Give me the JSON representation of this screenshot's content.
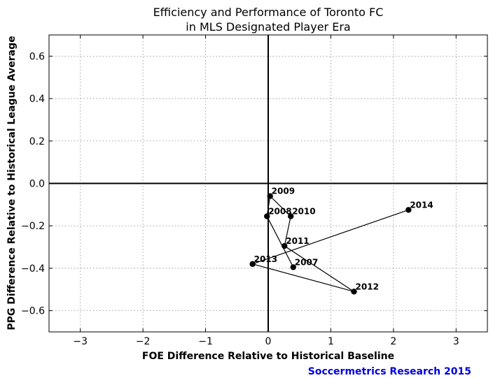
{
  "chart_data": {
    "type": "scatter",
    "title": [
      "Efficiency and Performance of Toronto FC",
      "in MLS Designated Player Era"
    ],
    "xlabel": "FOE Difference Relative to Historical Baseline",
    "ylabel": "PPG Difference Relative to Historical League Average",
    "xlim": [
      -3.5,
      3.5
    ],
    "ylim": [
      -0.7,
      0.7
    ],
    "xticks": [
      -3,
      -2,
      -1,
      0,
      1,
      2,
      3
    ],
    "xtick_labels": [
      "−3",
      "−2",
      "−1",
      "0",
      "1",
      "2",
      "3"
    ],
    "yticks": [
      -0.6,
      -0.4,
      -0.2,
      0.0,
      0.2,
      0.4,
      0.6
    ],
    "ytick_labels": [
      "−0.6",
      "−0.4",
      "−0.2",
      "0.0",
      "0.2",
      "0.4",
      "0.6"
    ],
    "grid": true,
    "reference_lines": {
      "x": 0,
      "y": 0
    },
    "series": [
      {
        "connected": true,
        "color": "#000000",
        "points": [
          {
            "label": "2007",
            "x": 0.4,
            "y": -0.395
          },
          {
            "label": "2008",
            "x": -0.02,
            "y": -0.155
          },
          {
            "label": "2009",
            "x": 0.03,
            "y": -0.06
          },
          {
            "label": "2010",
            "x": 0.36,
            "y": -0.155
          },
          {
            "label": "2011",
            "x": 0.26,
            "y": -0.295
          },
          {
            "label": "2012",
            "x": 1.37,
            "y": -0.51
          },
          {
            "label": "2013",
            "x": -0.25,
            "y": -0.38
          },
          {
            "label": "2014",
            "x": 2.24,
            "y": -0.125
          }
        ]
      }
    ]
  },
  "credit": {
    "text": "Soccermetrics Research 2015",
    "color": "#0000dd"
  }
}
